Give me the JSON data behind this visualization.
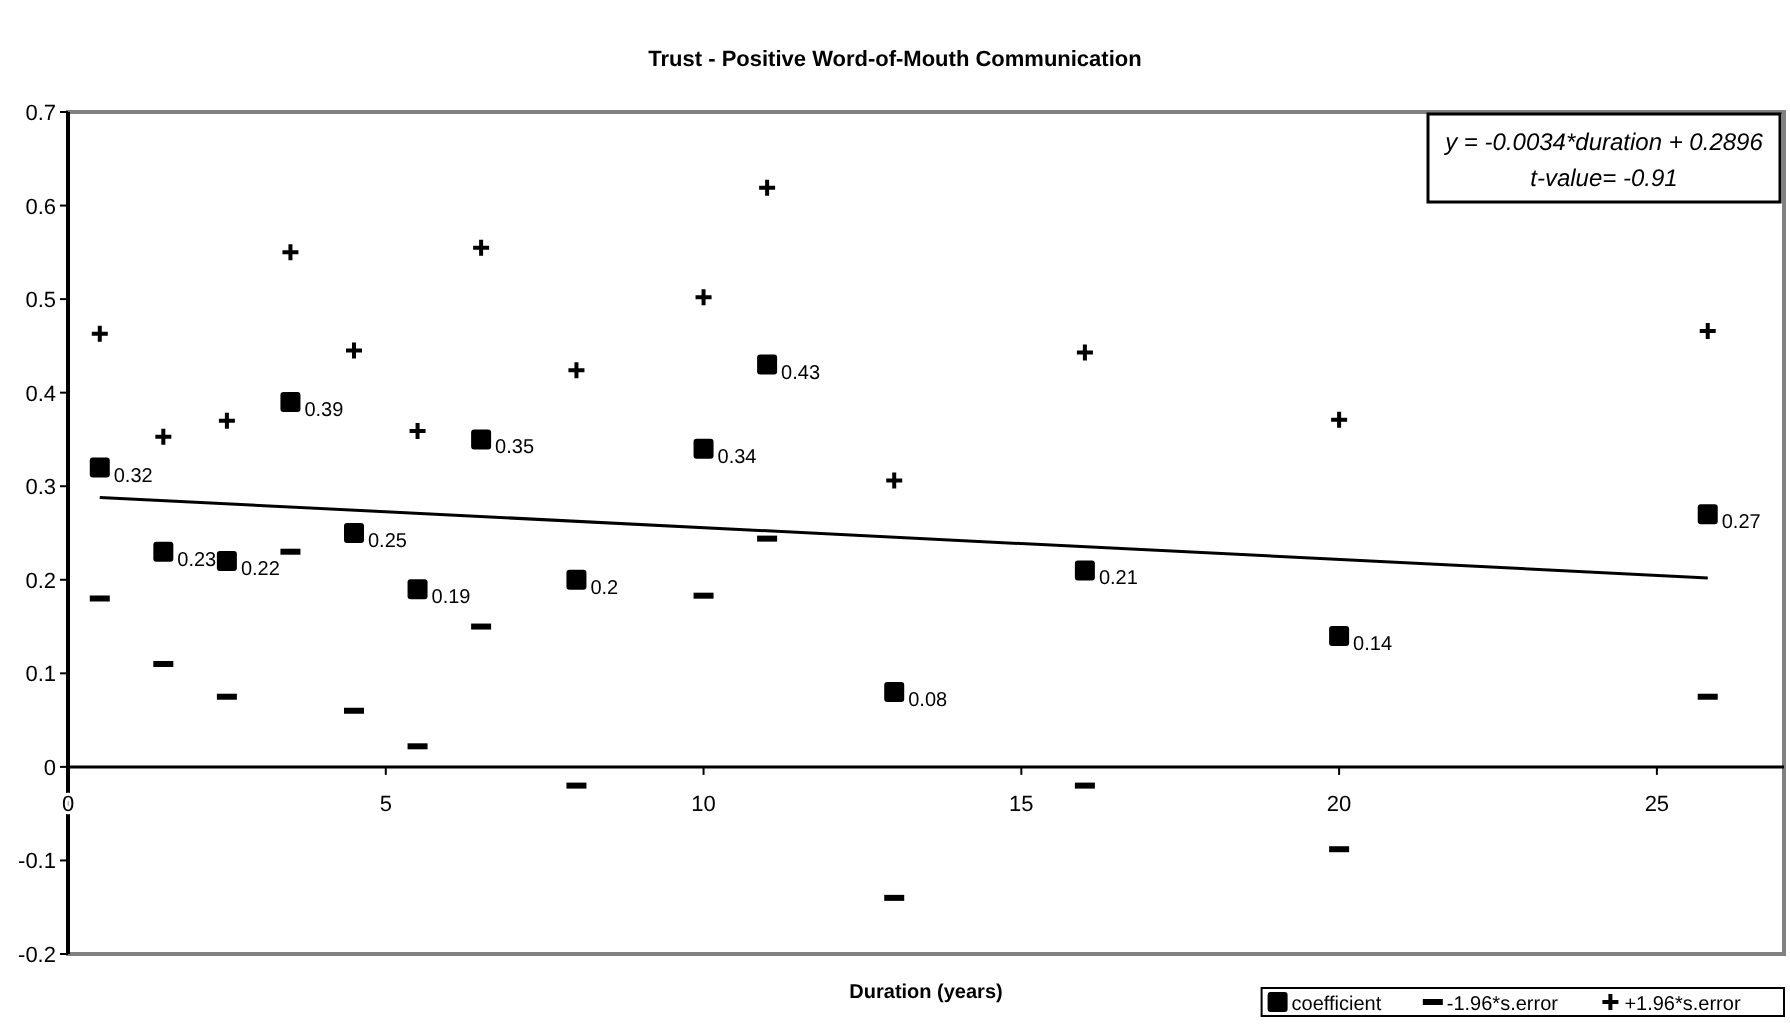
{
  "chart_data": {
    "type": "scatter",
    "title": "Trust - Positive Word-of-Mouth Communication",
    "xlabel": "Duration (years)",
    "x": [
      0.5,
      1.5,
      2.5,
      3.5,
      4.5,
      5.5,
      6.5,
      8,
      10,
      11,
      13,
      16,
      20,
      25.8
    ],
    "series": [
      {
        "name": "coefficient",
        "color": "#000000",
        "marker": "square",
        "values": [
          0.32,
          0.23,
          0.22,
          0.39,
          0.25,
          0.19,
          0.35,
          0.2,
          0.34,
          0.43,
          0.08,
          0.21,
          0.14,
          0.27
        ],
        "value_labels": [
          "0.32",
          "0.23",
          "0.22",
          "0.39",
          "0.25",
          "0.19",
          "0.35",
          "0.2",
          "0.34",
          "0.43",
          "0.08",
          "0.21",
          "0.14",
          "0.27"
        ]
      },
      {
        "name": "-1.96*s.error",
        "color": "#000000",
        "values": [
          0.18,
          0.11,
          0.075,
          0.23,
          0.06,
          0.022,
          0.15,
          -0.02,
          0.183,
          0.244,
          -0.14,
          -0.02,
          -0.088,
          0.075
        ]
      },
      {
        "name": "+1.96*s.error",
        "color": "#000000",
        "marker": "cross",
        "values": [
          0.463,
          0.353,
          0.37,
          0.55,
          0.445,
          0.359,
          0.555,
          0.424,
          0.502,
          0.619,
          0.306,
          0.443,
          0.371,
          0.466
        ]
      },
      {
        "type": "line",
        "color": "#000000",
        "marker": "none",
        "x": [
          0.5,
          25.8
        ],
        "values": [
          0.288,
          0.202
        ]
      }
    ],
    "annotations": [
      "y = -0.0034*duration + 0.2896\nt-value= -0.91"
    ],
    "xlim": [
      0,
      27
    ],
    "xticks": [
      0,
      5,
      10,
      15,
      20,
      25
    ],
    "ylim": [
      -0.2,
      0.7
    ],
    "yticks": [
      -0.2,
      -0.1,
      0,
      0.1,
      0.2,
      0.3,
      0.4,
      0.5,
      0.6,
      0.7
    ],
    "grid": false,
    "legend": "bottom right"
  }
}
